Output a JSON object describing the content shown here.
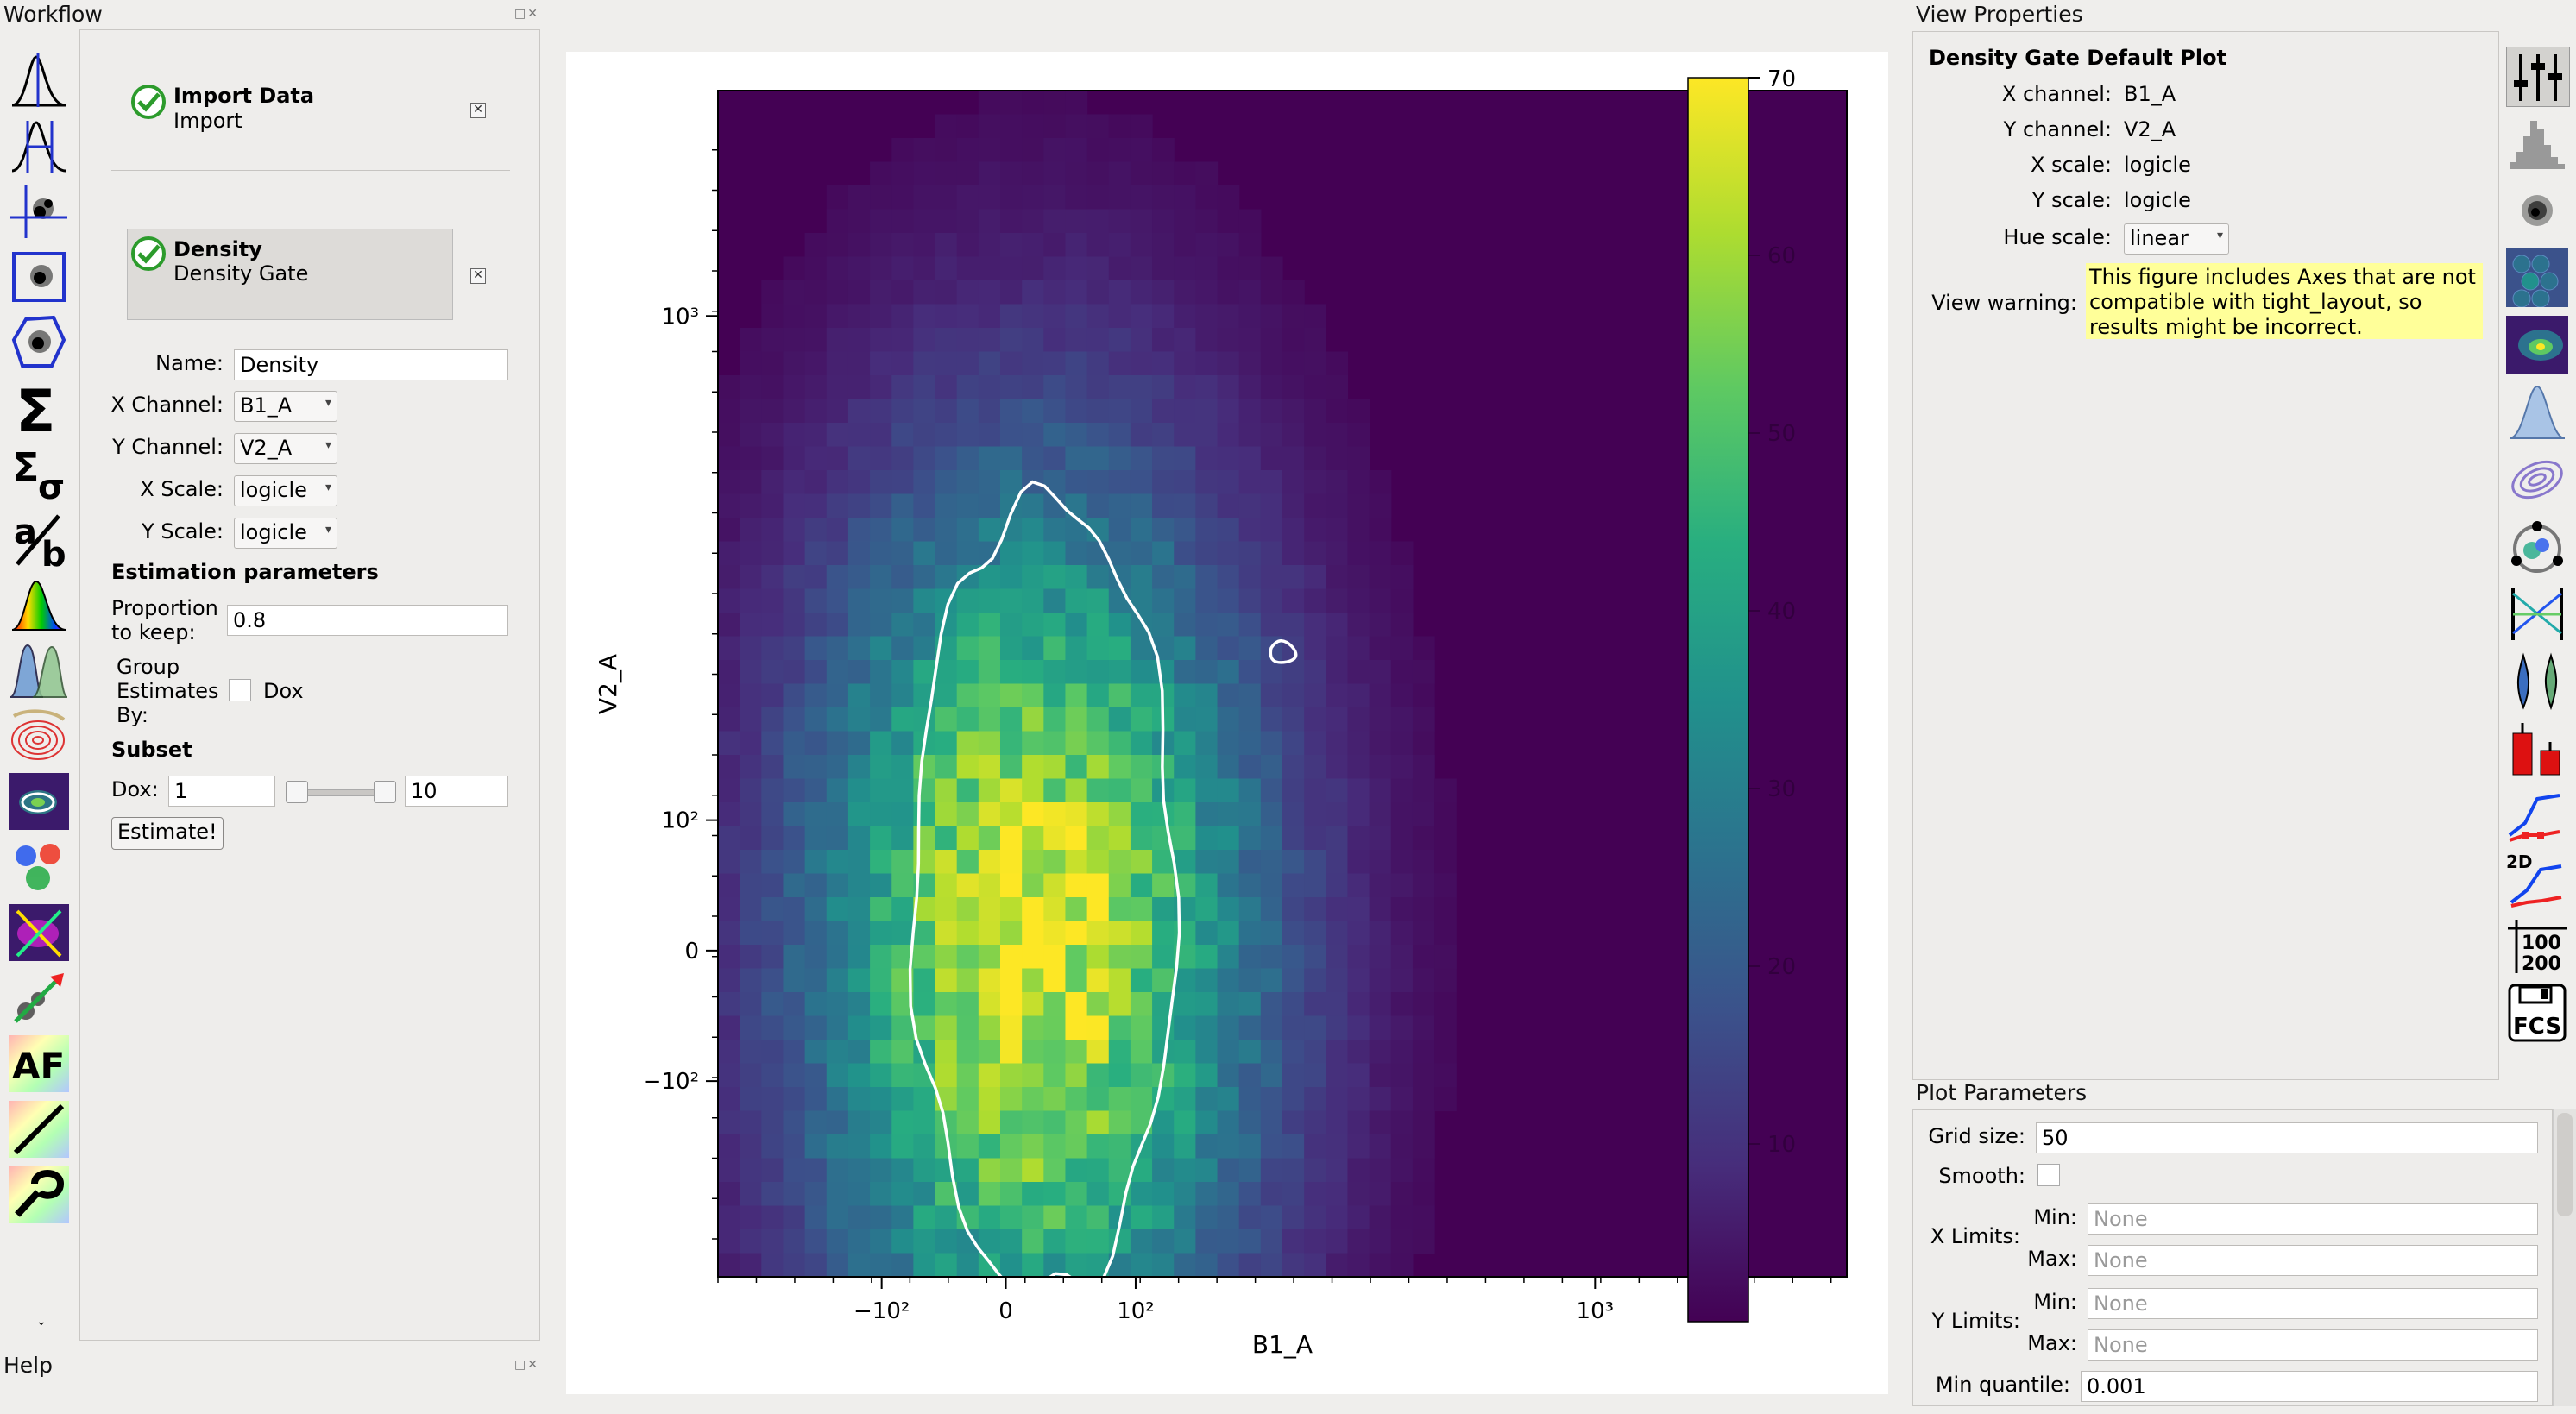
{
  "workflow": {
    "title": "Workflow",
    "ops": [
      {
        "name": "Import Data",
        "subtitle": "Import"
      },
      {
        "name": "Density",
        "subtitle": "Density Gate"
      }
    ],
    "form": {
      "name_label": "Name:",
      "name_value": "Density",
      "xchannel_label": "X Channel:",
      "xchannel_value": "B1_A",
      "ychannel_label": "Y Channel:",
      "ychannel_value": "V2_A",
      "xscale_label": "X Scale:",
      "xscale_value": "logicle",
      "yscale_label": "Y Scale:",
      "yscale_value": "logicle",
      "estimation_heading": "Estimation parameters",
      "proportion_label_1": "Proportion",
      "proportion_label_2": "to keep:",
      "proportion_value": "0.8",
      "group_label_1": "Group",
      "group_label_2": "Estimates",
      "group_label_3": "By:",
      "group_option": "Dox",
      "subset_heading": "Subset",
      "dox_label": "Dox:",
      "dox_min": "1",
      "dox_max": "10",
      "estimate_button": "Estimate!"
    }
  },
  "help": {
    "title": "Help"
  },
  "left_tools": [
    "histogram-icon",
    "2d-histogram-icon",
    "threshold-icon",
    "range2d-icon",
    "polygon-icon",
    "sum-icon",
    "sum-sigma-icon",
    "ratio-icon",
    "spectrum-icon",
    "gaussian-mixture-icon",
    "contour-icon",
    "density-icon",
    "kmeans-icon",
    "flow-peaks-icon",
    "bead-calibration-icon",
    "autofluorescence-icon",
    "bleedthrough-icon",
    "color-translation-icon"
  ],
  "right_tools": [
    "view-properties-icon",
    "histogram-view-icon",
    "scatter-view-icon",
    "hexbin-view-icon",
    "density-view-icon",
    "kde-view-icon",
    "contour-view-icon",
    "radviz-view-icon",
    "parallel-coords-icon",
    "violin-icon",
    "bar-chart-icon",
    "stats-1d-icon",
    "stats-2d-icon",
    "table-view-icon",
    "export-fcs-icon"
  ],
  "right_tool_text": {
    "stats2d": "2D",
    "table_a": "100",
    "table_b": "200",
    "fcs": "FCS",
    "ratio": "a/b",
    "af": "AF"
  },
  "view_properties": {
    "title": "View Properties",
    "heading": "Density Gate Default Plot",
    "xchannel_label": "X channel:",
    "xchannel_value": "B1_A",
    "ychannel_label": "Y channel:",
    "ychannel_value": "V2_A",
    "xscale_label": "X scale:",
    "xscale_value": "logicle",
    "yscale_label": "Y scale:",
    "yscale_value": "logicle",
    "hue_label": "Hue scale:",
    "hue_value": "linear",
    "warning_label": "View warning:",
    "warning_1": "This figure includes Axes that are not",
    "warning_2": "compatible with tight_layout, so",
    "warning_3": "results might be incorrect."
  },
  "plot_parameters": {
    "title": "Plot Parameters",
    "grid_label": "Grid size:",
    "grid_value": "50",
    "smooth_label": "Smooth:",
    "xlimits_label": "X Limits:",
    "ylimits_label": "Y Limits:",
    "min_label": "Min:",
    "max_label": "Max:",
    "none_placeholder": "None",
    "minq_label": "Min quantile:",
    "minq_value": "0.001"
  },
  "chart_data": {
    "type": "heatmap",
    "xlabel": "B1_A",
    "ylabel": "V2_A",
    "x_ticks": [
      "−10²",
      "0",
      "10²",
      "10³"
    ],
    "y_ticks": [
      "10³",
      "10²",
      "0",
      "−10²"
    ],
    "colorbar_max_label": "70",
    "colorbar_ticks": [
      "60",
      "50",
      "40",
      "30",
      "20",
      "10"
    ],
    "colormap": [
      "#440154",
      "#472d7b",
      "#3b528b",
      "#2c728e",
      "#21918c",
      "#28ae80",
      "#5ec962",
      "#addc30",
      "#fde725"
    ],
    "hue_range": [
      0,
      70
    ],
    "peak": {
      "x": 0.28,
      "y": 0.72
    },
    "contour_color": "#ffffff"
  }
}
